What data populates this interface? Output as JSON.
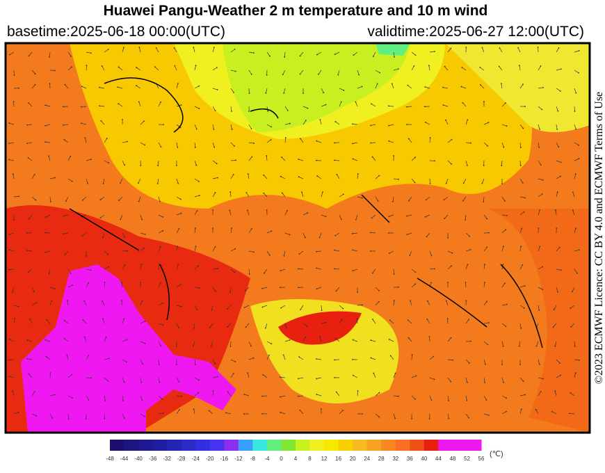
{
  "header": {
    "title": "Huawei Pangu-Weather  2 m temperature and 10 m wind",
    "basetime": "basetime:2025-06-18 00:00(UTC)",
    "validtime": "validtime:2025-06-27 12:00(UTC)"
  },
  "licence": "©2023 ECMWF Licence: CC BY 4.0 and ECMWF Terms of Use",
  "colorbar": {
    "ticks": [
      -48,
      -44,
      -40,
      -36,
      -32,
      -28,
      -24,
      -20,
      -16,
      -12,
      -8,
      -4,
      0,
      4,
      8,
      12,
      16,
      20,
      24,
      28,
      32,
      36,
      40,
      44,
      48,
      52,
      56
    ],
    "colors": [
      "#1b1070",
      "#1d1580",
      "#1f1a90",
      "#211fa0",
      "#2424b4",
      "#2a2ac8",
      "#3030e0",
      "#4a30f0",
      "#8a2ef0",
      "#3aa0ff",
      "#38e8e0",
      "#60f080",
      "#80e830",
      "#c8f020",
      "#f0f020",
      "#f8e800",
      "#f8d000",
      "#f8b820",
      "#f8a020",
      "#f88820",
      "#f87020",
      "#f05018",
      "#e82010",
      "#f018f0",
      "#f018f0",
      "#f018f0"
    ],
    "unit": "(℃)"
  }
}
